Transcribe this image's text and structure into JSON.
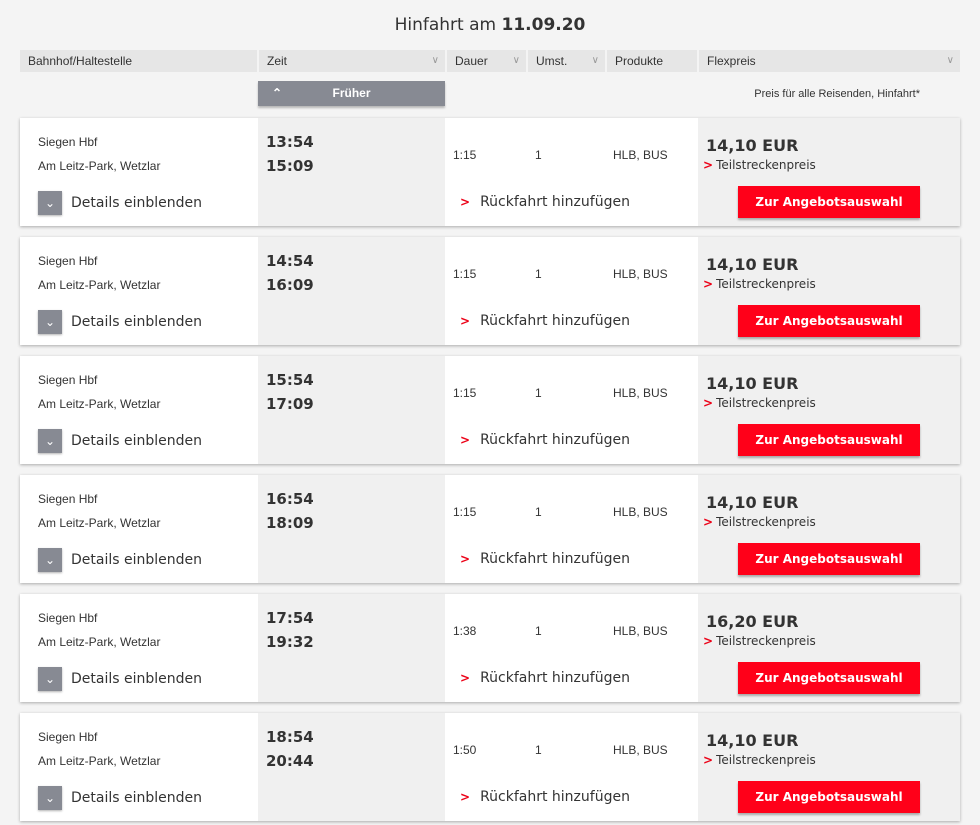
{
  "title": {
    "prefix": "Hinfahrt am",
    "date": "11.09.20"
  },
  "columns": [
    "Bahnhof/Haltestelle",
    "Zeit",
    "Dauer",
    "Umst.",
    "Produkte",
    "Flexpreis"
  ],
  "earlier_label": "Früher",
  "price_note": "Preis für alle Reisenden, Hinfahrt*",
  "labels": {
    "details": "Details einblenden",
    "return": "Rückfahrt hinzufügen",
    "partial": "Teilstreckenpreis",
    "select": "Zur Angebotsauswahl"
  },
  "colors": {
    "accent": "#ff0019",
    "button_grey": "#878a93"
  },
  "connections": [
    {
      "from": "Siegen Hbf",
      "to": "Am Leitz-Park, Wetzlar",
      "dep": "13:54",
      "arr": "15:09",
      "duration": "1:15",
      "changes": "1",
      "products": "HLB, BUS",
      "price": "14,10 EUR"
    },
    {
      "from": "Siegen Hbf",
      "to": "Am Leitz-Park, Wetzlar",
      "dep": "14:54",
      "arr": "16:09",
      "duration": "1:15",
      "changes": "1",
      "products": "HLB, BUS",
      "price": "14,10 EUR"
    },
    {
      "from": "Siegen Hbf",
      "to": "Am Leitz-Park, Wetzlar",
      "dep": "15:54",
      "arr": "17:09",
      "duration": "1:15",
      "changes": "1",
      "products": "HLB, BUS",
      "price": "14,10 EUR"
    },
    {
      "from": "Siegen Hbf",
      "to": "Am Leitz-Park, Wetzlar",
      "dep": "16:54",
      "arr": "18:09",
      "duration": "1:15",
      "changes": "1",
      "products": "HLB, BUS",
      "price": "14,10 EUR"
    },
    {
      "from": "Siegen Hbf",
      "to": "Am Leitz-Park, Wetzlar",
      "dep": "17:54",
      "arr": "19:32",
      "duration": "1:38",
      "changes": "1",
      "products": "HLB, BUS",
      "price": "16,20 EUR"
    },
    {
      "from": "Siegen Hbf",
      "to": "Am Leitz-Park, Wetzlar",
      "dep": "18:54",
      "arr": "20:44",
      "duration": "1:50",
      "changes": "1",
      "products": "HLB, BUS",
      "price": "14,10 EUR"
    }
  ]
}
